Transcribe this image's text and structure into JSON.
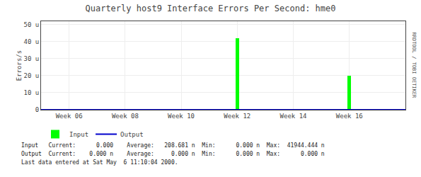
{
  "chart_data": {
    "type": "bar",
    "title": "Quarterly host9 Interface Errors Per Second: hme0",
    "y_label": "Errors/s",
    "xlim": [
      0,
      13
    ],
    "xticks": [
      {
        "value": 1,
        "label": "Week 06"
      },
      {
        "value": 3,
        "label": "Week 08"
      },
      {
        "value": 5,
        "label": "Week 10"
      },
      {
        "value": 7,
        "label": "Week 12"
      },
      {
        "value": 9,
        "label": "Week 14"
      },
      {
        "value": 11,
        "label": "Week 16"
      }
    ],
    "ylim": [
      0,
      52
    ],
    "yticks": [
      0,
      {
        "value": 10,
        "label": "10 u"
      },
      {
        "value": 20,
        "label": "20 u"
      },
      {
        "value": 30,
        "label": "30 u"
      },
      {
        "value": 40,
        "label": "40 u"
      },
      {
        "value": 50,
        "label": "50 u"
      }
    ],
    "grid": true,
    "legend": "bottom left",
    "series": [
      {
        "name": "Input",
        "type": "bar",
        "color": "#00ff00",
        "x": [
          7,
          11
        ],
        "values": [
          42,
          20
        ]
      },
      {
        "name": "Output",
        "type": "line",
        "color": "#0000cc",
        "x": [
          0,
          13
        ],
        "values": [
          0,
          0
        ]
      }
    ],
    "annotations": [
      "Input   Current:      0.000    Average:   208.681 n  Min:      0.000 n  Max:  41944.444 n",
      "Output  Current:    0.000 n    Average:     0.000 n  Min:      0.000 n  Max:      0.000 n",
      "Last data entered at Sat May  6 11:10:04 2000.",
      "RRDTOOL / TOBI OETIKER"
    ]
  }
}
